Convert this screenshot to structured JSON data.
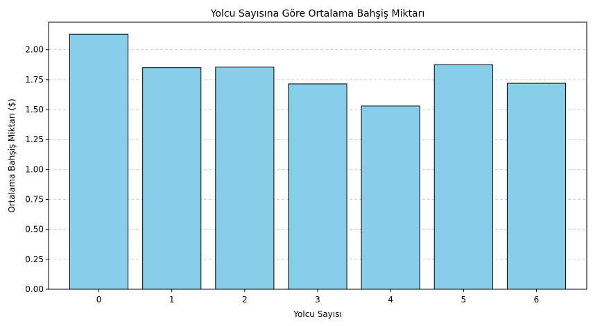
{
  "chart_data": {
    "type": "bar",
    "title": "Yolcu Sayısına Göre Ortalama Bahşiş Miktarı",
    "xlabel": "Yolcu Sayısı",
    "ylabel": "Ortalama Bahşiş Miktarı ($)",
    "categories": [
      "0",
      "1",
      "2",
      "3",
      "4",
      "5",
      "6"
    ],
    "values": [
      2.13,
      1.85,
      1.855,
      1.715,
      1.53,
      1.875,
      1.72
    ],
    "ylim": [
      0,
      2.23
    ],
    "yticks": [
      "0.00",
      "0.25",
      "0.50",
      "0.75",
      "1.00",
      "1.25",
      "1.50",
      "1.75",
      "2.00"
    ],
    "grid": "y-dashed",
    "bar_color": "#87ceeb",
    "edge_color": "#000000",
    "grid_color": "#bfbfbf"
  }
}
